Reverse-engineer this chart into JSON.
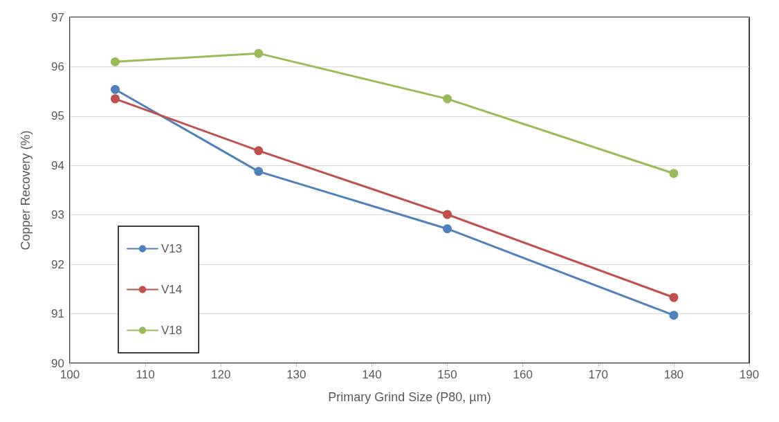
{
  "chart_data": {
    "type": "line",
    "xlabel": "Primary Grind Size (P80, µm)",
    "ylabel": "Copper Recovery (%)",
    "x": [
      106,
      125,
      150,
      180
    ],
    "series": [
      {
        "name": "V13",
        "color": "#4f81bd",
        "values": [
          95.54,
          93.88,
          92.72,
          90.97
        ]
      },
      {
        "name": "V14",
        "color": "#c0504d",
        "values": [
          95.35,
          94.3,
          93.01,
          91.33
        ]
      },
      {
        "name": "V18",
        "color": "#9bbb59",
        "values": [
          96.1,
          96.27,
          95.35,
          93.84
        ]
      }
    ],
    "xlim": [
      100,
      190
    ],
    "xticks": [
      100,
      110,
      120,
      130,
      140,
      150,
      160,
      170,
      180,
      190
    ],
    "ylim": [
      90,
      97
    ],
    "yticks": [
      90,
      91,
      92,
      93,
      94,
      95,
      96,
      97
    ],
    "grid": "y",
    "legend": "bottom left",
    "marker": "circle",
    "line_style": "solid"
  }
}
